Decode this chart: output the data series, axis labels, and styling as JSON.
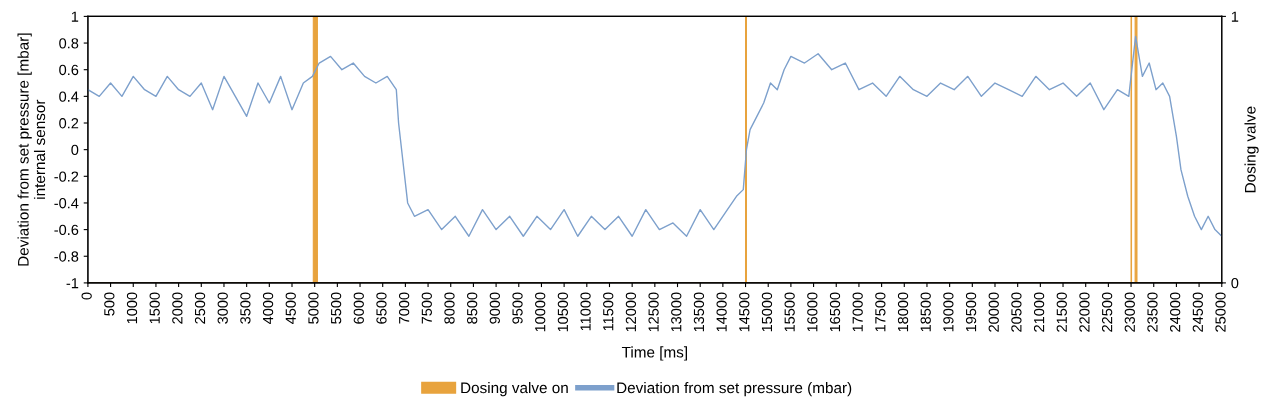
{
  "chart_data": {
    "type": "line",
    "xlabel": "Time [ms]",
    "ylabel": "Deviation from set pressure [mbar]\ninternal sensor",
    "y2label": "Dosing valve",
    "xlim": [
      0,
      25000
    ],
    "xticks": [
      0,
      500,
      1000,
      1500,
      2000,
      2500,
      3000,
      3500,
      4000,
      4500,
      5000,
      5500,
      6000,
      6500,
      7000,
      7500,
      8000,
      8500,
      9000,
      9500,
      10000,
      10500,
      11000,
      11500,
      12000,
      12500,
      13000,
      13500,
      14000,
      14500,
      15000,
      15500,
      16000,
      16500,
      17000,
      17500,
      18000,
      18500,
      19000,
      19500,
      20000,
      20500,
      21000,
      21500,
      22000,
      22500,
      23000,
      23500,
      24000,
      24500,
      25000
    ],
    "ylim": [
      -1,
      1
    ],
    "yticks": [
      -1,
      -0.8,
      -0.6,
      -0.4,
      -0.2,
      0,
      0.2,
      0.4,
      0.6,
      0.8,
      1
    ],
    "y2lim": [
      0,
      1
    ],
    "y2ticks": [
      0,
      1
    ],
    "grid": false,
    "legend": "bottom",
    "series": [
      {
        "name": "Dosing valve on",
        "type": "area",
        "axis": "y2",
        "color": "#e8a33d",
        "x": [
          0,
          4970,
          4970,
          5060,
          5060,
          14500,
          14500,
          14520,
          14520,
          23000,
          23000,
          23010,
          23010,
          23090,
          23090,
          23130,
          23130,
          25000
        ],
        "values": [
          0,
          0,
          1,
          1,
          0,
          0,
          1,
          1,
          0,
          0,
          1,
          1,
          0,
          0,
          1,
          1,
          0,
          0
        ]
      },
      {
        "name": "Deviation from set pressure (mbar)",
        "color": "#7da0cc",
        "x": [
          0,
          250,
          500,
          750,
          1000,
          1250,
          1500,
          1750,
          2000,
          2250,
          2500,
          2750,
          3000,
          3250,
          3500,
          3750,
          4000,
          4250,
          4500,
          4750,
          4950,
          5100,
          5350,
          5600,
          5850,
          6100,
          6350,
          6600,
          6800,
          6850,
          6950,
          7050,
          7200,
          7500,
          7800,
          8100,
          8400,
          8700,
          9000,
          9300,
          9600,
          9900,
          10200,
          10500,
          10800,
          11100,
          11400,
          11700,
          12000,
          12300,
          12600,
          12900,
          13200,
          13500,
          13800,
          14100,
          14300,
          14450,
          14520,
          14600,
          14750,
          14900,
          15050,
          15200,
          15350,
          15500,
          15800,
          16100,
          16400,
          16700,
          17000,
          17300,
          17600,
          17900,
          18200,
          18500,
          18800,
          19100,
          19400,
          19700,
          20000,
          20300,
          20600,
          20900,
          21200,
          21500,
          21800,
          22100,
          22400,
          22700,
          22950,
          23100,
          23250,
          23400,
          23550,
          23700,
          23850,
          24000,
          24100,
          24250,
          24400,
          24550,
          24700,
          24850,
          25000
        ],
        "values": [
          0.45,
          0.4,
          0.5,
          0.4,
          0.55,
          0.45,
          0.4,
          0.55,
          0.45,
          0.4,
          0.5,
          0.3,
          0.55,
          0.4,
          0.25,
          0.5,
          0.35,
          0.55,
          0.3,
          0.5,
          0.55,
          0.65,
          0.7,
          0.6,
          0.65,
          0.55,
          0.5,
          0.55,
          0.45,
          0.2,
          -0.1,
          -0.4,
          -0.5,
          -0.45,
          -0.6,
          -0.5,
          -0.65,
          -0.45,
          -0.6,
          -0.5,
          -0.65,
          -0.5,
          -0.6,
          -0.45,
          -0.65,
          -0.5,
          -0.6,
          -0.5,
          -0.65,
          -0.45,
          -0.6,
          -0.55,
          -0.65,
          -0.45,
          -0.6,
          -0.45,
          -0.35,
          -0.3,
          0.0,
          0.15,
          0.25,
          0.35,
          0.5,
          0.45,
          0.6,
          0.7,
          0.65,
          0.72,
          0.6,
          0.65,
          0.45,
          0.5,
          0.4,
          0.55,
          0.45,
          0.4,
          0.5,
          0.45,
          0.55,
          0.4,
          0.5,
          0.45,
          0.4,
          0.55,
          0.45,
          0.5,
          0.4,
          0.5,
          0.3,
          0.45,
          0.4,
          0.85,
          0.55,
          0.65,
          0.45,
          0.5,
          0.4,
          0.1,
          -0.15,
          -0.35,
          -0.5,
          -0.6,
          -0.5,
          -0.6,
          -0.65
        ]
      }
    ]
  }
}
